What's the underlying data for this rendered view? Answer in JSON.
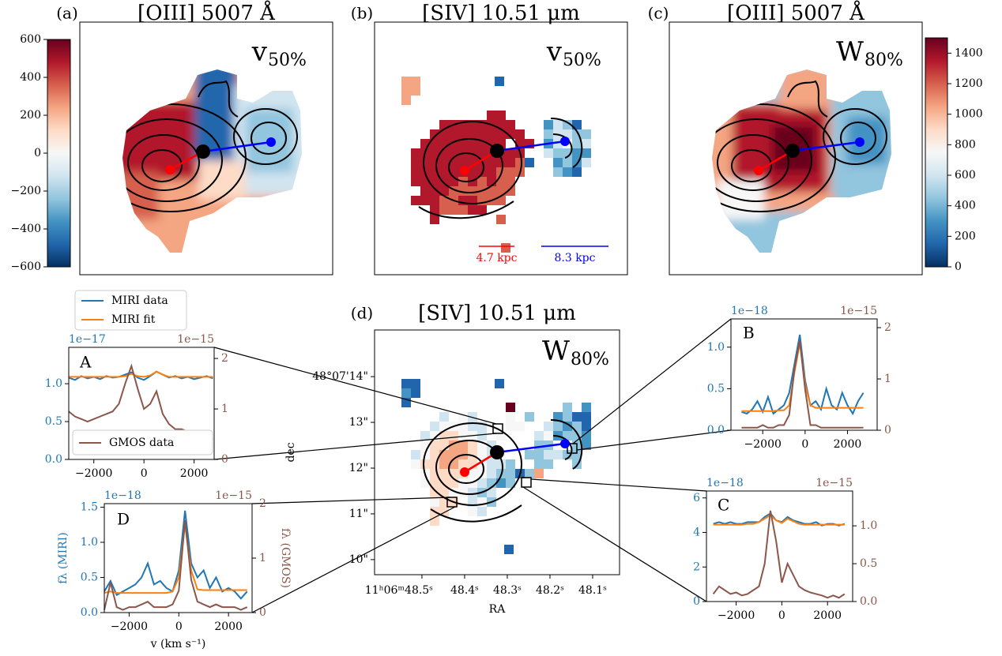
{
  "chart_data": [
    {
      "type": "map",
      "panel": "(a)",
      "title": "[OIII] 5007 Å",
      "label": "v",
      "label_sub": "50%",
      "colorbar": {
        "lim": [
          -600,
          600
        ],
        "ticks": [
          {
            "value": -600,
            "label": "−600"
          },
          {
            "value": -400,
            "label": "−400"
          },
          {
            "value": -200,
            "label": "−200"
          },
          0,
          200,
          400,
          600
        ]
      }
    },
    {
      "type": "map",
      "panel": "(b)",
      "title": "[SIV] 10.51 μm",
      "label": "v",
      "label_sub": "50%",
      "scale_bars": [
        {
          "label": "4.7 kpc",
          "color": "#ff0000"
        },
        {
          "label": "8.3 kpc",
          "color": "#0000ff"
        }
      ]
    },
    {
      "type": "map",
      "panel": "(c)",
      "title": "[OIII] 5007 Å",
      "label": "W",
      "label_sub": "80%",
      "colorbar": {
        "lim": [
          0,
          1500
        ],
        "ticks": [
          0,
          200,
          400,
          600,
          800,
          1000,
          1200,
          1400
        ]
      }
    },
    {
      "type": "map",
      "panel": "(d)",
      "title": "[SIV] 10.51 μm",
      "label": "W",
      "label_sub": "80%",
      "xlabel": "RA",
      "ylabel": "dec",
      "xlim": [
        48.611,
        48.037
      ],
      "ylim": [
        9.67,
        15.02
      ],
      "xticks": [
        {
          "value": 48.5,
          "label": "11ʰ06ᵐ48.5ˢ"
        },
        {
          "value": 48.4,
          "label": "48.4ˢ"
        },
        {
          "value": 48.3,
          "label": "48.3ˢ"
        },
        {
          "value": 48.2,
          "label": "48.2ˢ"
        },
        {
          "value": 48.1,
          "label": "48.1ˢ"
        }
      ],
      "yticks": [
        {
          "value": 14,
          "label": "48°07'14\""
        },
        {
          "value": 13,
          "label": "13\""
        },
        {
          "value": 12,
          "label": "12\""
        },
        {
          "value": 11,
          "label": "11\""
        },
        {
          "value": 10,
          "label": "10\""
        }
      ]
    },
    {
      "type": "line",
      "label": "A",
      "offset": "1e−17",
      "offset2": "1e−15",
      "xlim": [
        -3000,
        2800
      ],
      "ylim": [
        0,
        1.48
      ],
      "y2lim": [
        0,
        2.22
      ],
      "xticks": [
        {
          "value": -2000,
          "label": "−2000"
        },
        0,
        2000
      ],
      "yticks": [
        {
          "value": 0,
          "label": "0.0"
        },
        0.5,
        {
          "value": 1,
          "label": "1.0"
        }
      ],
      "y2ticks": [
        0,
        1,
        2
      ],
      "x": [
        -3000,
        -2750,
        -2500,
        -2250,
        -2000,
        -1750,
        -1500,
        -1250,
        -1000,
        -750,
        -500,
        -250,
        0,
        250,
        500,
        750,
        1000,
        1250,
        1500,
        1750,
        2000,
        2250,
        2500,
        2750
      ],
      "series": [
        {
          "name": "MIRI data",
          "color": "#1f77b4",
          "values": [
            1.08,
            1.05,
            1.1,
            1.07,
            1.09,
            1.06,
            1.1,
            1.08,
            1.09,
            1.12,
            1.15,
            1.08,
            1.05,
            1.1,
            1.16,
            1.12,
            1.08,
            1.1,
            1.07,
            1.09,
            1.06,
            1.08,
            1.1,
            1.07
          ]
        },
        {
          "name": "MIRI fit",
          "color": "#ff7f0e",
          "values": [
            1.09,
            1.09,
            1.09,
            1.09,
            1.09,
            1.09,
            1.09,
            1.09,
            1.09,
            1.1,
            1.13,
            1.1,
            1.09,
            1.11,
            1.16,
            1.12,
            1.09,
            1.09,
            1.09,
            1.09,
            1.09,
            1.09,
            1.09,
            1.09
          ]
        },
        {
          "name": "GMOS data",
          "color": "#8c564b",
          "axis": "y2",
          "values": [
            0.95,
            0.85,
            0.8,
            0.75,
            0.8,
            0.85,
            0.9,
            0.95,
            1.1,
            1.5,
            1.85,
            1.4,
            1.0,
            1.1,
            1.35,
            0.9,
            0.7,
            0.6,
            0.6,
            0.55,
            0.5,
            0.45,
            0.45,
            0.4
          ]
        }
      ]
    },
    {
      "type": "line",
      "label": "B",
      "offset": "1e−18",
      "offset2": "1e−15",
      "xlim": [
        -3500,
        3400
      ],
      "ylim": [
        0,
        1.34
      ],
      "y2lim": [
        0,
        2.17
      ],
      "xticks": [
        {
          "value": -2000,
          "label": "−2000"
        },
        0,
        2000
      ],
      "yticks": [
        {
          "value": 0,
          "label": "0.0"
        },
        0.5,
        {
          "value": 1,
          "label": "1.0"
        }
      ],
      "y2ticks": [
        0,
        1,
        2
      ],
      "x": [
        -3000,
        -2750,
        -2500,
        -2250,
        -2000,
        -1750,
        -1500,
        -1250,
        -1000,
        -750,
        -500,
        -250,
        0,
        250,
        500,
        750,
        1000,
        1250,
        1500,
        1750,
        2000,
        2250,
        2500,
        2750
      ],
      "series": [
        {
          "color": "#1f77b4",
          "values": [
            0.22,
            0.2,
            0.25,
            0.35,
            0.22,
            0.4,
            0.2,
            0.25,
            0.3,
            0.45,
            0.8,
            1.15,
            0.6,
            0.3,
            0.35,
            0.25,
            0.5,
            0.3,
            0.25,
            0.45,
            0.3,
            0.2,
            0.35,
            0.45
          ]
        },
        {
          "color": "#ff7f0e",
          "values": [
            0.23,
            0.23,
            0.23,
            0.23,
            0.23,
            0.23,
            0.23,
            0.24,
            0.24,
            0.3,
            0.7,
            1.05,
            0.55,
            0.3,
            0.27,
            0.27,
            0.27,
            0.27,
            0.27,
            0.27,
            0.27,
            0.27,
            0.27,
            0.27
          ]
        },
        {
          "color": "#8c564b",
          "axis": "y2",
          "values": [
            0.05,
            0.05,
            0.05,
            0.05,
            0.1,
            0.05,
            0.05,
            0.1,
            0.1,
            0.3,
            1.2,
            1.75,
            0.8,
            0.1,
            0.1,
            0.05,
            0.05,
            0.05,
            0.05,
            0.05,
            0.05,
            0.05,
            0.05,
            0.05
          ]
        }
      ]
    },
    {
      "type": "line",
      "label": "C",
      "offset": "1e−18",
      "offset2": "1e−15",
      "xlim": [
        -3300,
        3100
      ],
      "ylim": [
        0,
        6.4
      ],
      "y2lim": [
        0,
        1.46
      ],
      "xticks": [
        {
          "value": -2000,
          "label": "−2000"
        },
        0,
        2000
      ],
      "yticks": [
        0,
        2,
        4,
        6
      ],
      "y2ticks": [
        {
          "value": 0,
          "label": "0.0"
        },
        0.5,
        {
          "value": 1,
          "label": "1.0"
        }
      ],
      "x": [
        -3000,
        -2750,
        -2500,
        -2250,
        -2000,
        -1750,
        -1500,
        -1250,
        -1000,
        -750,
        -500,
        -250,
        0,
        250,
        500,
        750,
        1000,
        1250,
        1500,
        1750,
        2000,
        2250,
        2500,
        2750
      ],
      "series": [
        {
          "color": "#1f77b4",
          "values": [
            4.5,
            4.6,
            4.5,
            4.6,
            4.5,
            4.5,
            4.6,
            4.6,
            4.6,
            4.9,
            5.1,
            4.7,
            4.6,
            4.9,
            4.7,
            4.6,
            4.5,
            4.5,
            4.6,
            4.4,
            4.5,
            4.5,
            4.4,
            4.5
          ]
        },
        {
          "color": "#ff7f0e",
          "values": [
            4.45,
            4.45,
            4.45,
            4.45,
            4.45,
            4.45,
            4.5,
            4.5,
            4.6,
            4.8,
            5.0,
            4.7,
            4.55,
            4.8,
            4.65,
            4.5,
            4.45,
            4.45,
            4.45,
            4.45,
            4.45,
            4.45,
            4.45,
            4.45
          ]
        },
        {
          "color": "#8c564b",
          "axis": "y2",
          "values": [
            0.1,
            0.2,
            0.15,
            0.1,
            0.12,
            0.08,
            0.1,
            0.15,
            0.2,
            0.5,
            1.2,
            0.8,
            0.25,
            0.5,
            0.35,
            0.2,
            0.15,
            0.12,
            0.1,
            0.08,
            0.05,
            0.08,
            0.05,
            0.1
          ]
        }
      ]
    },
    {
      "type": "line",
      "label": "D",
      "offset": "1e−18",
      "offset2": "1e−15",
      "ylabel": "fλ (MIRI)",
      "y2label": "fλ (GMOS)",
      "xlabel": "v (km s⁻¹)",
      "xlim": [
        -3000,
        2950
      ],
      "ylim": [
        0,
        1.55
      ],
      "y2lim": [
        0,
        2.0
      ],
      "xticks": [
        {
          "value": -2000,
          "label": "−2000"
        },
        0,
        2000
      ],
      "yticks": [
        {
          "value": 0,
          "label": "0.0"
        },
        0.5,
        {
          "value": 1,
          "label": "1.0"
        },
        1.5
      ],
      "y2ticks": [
        0,
        1,
        2
      ],
      "x": [
        -3000,
        -2750,
        -2500,
        -2250,
        -2000,
        -1750,
        -1500,
        -1250,
        -1000,
        -750,
        -500,
        -250,
        0,
        250,
        500,
        750,
        1000,
        1250,
        1500,
        1750,
        2000,
        2250,
        2500,
        2750
      ],
      "series": [
        {
          "color": "#1f77b4",
          "values": [
            0.3,
            0.45,
            0.25,
            0.3,
            0.35,
            0.4,
            0.5,
            0.7,
            0.4,
            0.45,
            0.35,
            0.3,
            0.6,
            1.45,
            0.7,
            0.5,
            0.6,
            0.35,
            0.5,
            0.3,
            0.35,
            0.3,
            0.2,
            0.3
          ]
        },
        {
          "color": "#ff7f0e",
          "values": [
            0.28,
            0.3,
            0.28,
            0.28,
            0.28,
            0.28,
            0.28,
            0.28,
            0.28,
            0.28,
            0.28,
            0.3,
            0.5,
            1.25,
            0.6,
            0.33,
            0.32,
            0.32,
            0.32,
            0.32,
            0.32,
            0.32,
            0.32,
            0.32
          ]
        },
        {
          "color": "#8c564b",
          "axis": "y2",
          "values": [
            0.05,
            0.55,
            0.1,
            0.05,
            0.1,
            0.1,
            0.15,
            0.2,
            0.1,
            0.1,
            0.1,
            0.15,
            0.4,
            1.7,
            0.6,
            0.2,
            0.15,
            0.1,
            0.15,
            0.1,
            0.1,
            0.1,
            0.05,
            0.1
          ]
        }
      ]
    }
  ]
}
